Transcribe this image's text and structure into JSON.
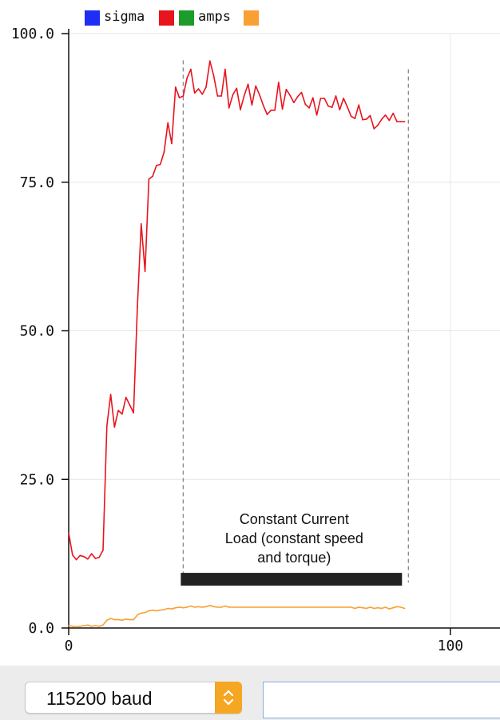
{
  "chart_data": {
    "type": "line",
    "title": "",
    "xlabel": "",
    "ylabel": "",
    "xlim": [
      0,
      113
    ],
    "ylim": [
      0,
      100
    ],
    "xticks": [
      0,
      100
    ],
    "xtick_labels": [
      "0",
      "100"
    ],
    "yticks": [
      0,
      25,
      50,
      75,
      100
    ],
    "ytick_labels": [
      "0.0",
      "25.0",
      "50.0",
      "75.0",
      "100.0"
    ],
    "grid": true,
    "legend": {
      "position": "top-left",
      "entries": [
        {
          "label": "sigma",
          "color": "#1f2ef5",
          "show_label": true
        },
        {
          "label": "",
          "color": "#e8141e",
          "show_label": false
        },
        {
          "label": "",
          "color": "#1d9b2b",
          "show_label": false
        },
        {
          "label": "amps",
          "color": "#f9a034",
          "show_label": true
        },
        {
          "label": "",
          "color": "#f9a034",
          "show_label": false
        }
      ]
    },
    "series": [
      {
        "color": "#e8141e",
        "x": [
          0,
          1,
          2,
          3,
          4,
          5,
          6,
          7,
          8,
          9,
          10,
          11,
          12,
          13,
          14,
          15,
          16,
          17,
          18,
          19,
          20,
          21,
          22,
          23,
          24,
          25,
          26,
          27,
          28,
          29,
          30,
          31,
          32,
          33,
          34,
          35,
          36,
          37,
          38,
          39,
          40,
          41,
          42,
          43,
          44,
          45,
          46,
          47,
          48,
          49,
          50,
          51,
          52,
          53,
          54,
          55,
          56,
          57,
          58,
          59,
          60,
          61,
          62,
          63,
          64,
          65,
          66,
          67,
          68,
          69,
          70,
          71,
          72,
          73,
          74,
          75,
          76,
          77,
          78,
          79,
          80,
          81,
          82,
          83,
          84,
          85,
          86,
          87,
          88
        ],
        "values": [
          16.0,
          12.3,
          11.5,
          12.2,
          12.0,
          11.6,
          12.5,
          11.7,
          11.9,
          13.1,
          34.0,
          39.3,
          33.8,
          36.6,
          36.0,
          38.8,
          37.5,
          36.2,
          54.0,
          68.0,
          60.0,
          75.5,
          76.0,
          77.8,
          78.0,
          80.1,
          85.0,
          81.5,
          91.0,
          89.2,
          89.5,
          92.5,
          94.0,
          90.0,
          90.7,
          89.8,
          91.0,
          95.4,
          92.9,
          89.5,
          89.5,
          94.0,
          87.5,
          89.7,
          90.8,
          87.2,
          89.6,
          91.5,
          88.0,
          91.2,
          89.7,
          87.9,
          86.4,
          87.1,
          87.1,
          91.8,
          87.3,
          90.6,
          89.6,
          88.4,
          89.4,
          90.1,
          88.1,
          87.5,
          89.2,
          86.3,
          89.1,
          89.1,
          87.8,
          87.6,
          89.5,
          87.2,
          89.1,
          87.7,
          86.1,
          85.7,
          88.0,
          85.5,
          85.6,
          86.2,
          84.0,
          84.6,
          85.6,
          86.3,
          85.4,
          86.6,
          85.2,
          85.2,
          85.2
        ]
      },
      {
        "name": "amps",
        "color": "#f9a034",
        "x": [
          0,
          1,
          2,
          3,
          4,
          5,
          6,
          7,
          8,
          9,
          10,
          11,
          12,
          13,
          14,
          15,
          16,
          17,
          18,
          19,
          20,
          21,
          22,
          23,
          24,
          25,
          26,
          27,
          28,
          29,
          30,
          31,
          32,
          33,
          34,
          35,
          36,
          37,
          38,
          39,
          40,
          41,
          42,
          43,
          44,
          45,
          46,
          47,
          48,
          49,
          50,
          51,
          52,
          53,
          54,
          55,
          56,
          57,
          58,
          59,
          60,
          61,
          62,
          63,
          64,
          65,
          66,
          67,
          68,
          69,
          70,
          71,
          72,
          73,
          74,
          75,
          76,
          77,
          78,
          79,
          80,
          81,
          82,
          83,
          84,
          85,
          86,
          87,
          88
        ],
        "values": [
          0.4,
          0.3,
          0.2,
          0.3,
          0.4,
          0.5,
          0.3,
          0.4,
          0.3,
          0.5,
          1.3,
          1.6,
          1.4,
          1.4,
          1.3,
          1.5,
          1.4,
          1.4,
          2.2,
          2.5,
          2.6,
          2.9,
          3.0,
          2.9,
          3.0,
          3.1,
          3.3,
          3.2,
          3.4,
          3.5,
          3.4,
          3.5,
          3.7,
          3.5,
          3.6,
          3.5,
          3.6,
          3.8,
          3.6,
          3.5,
          3.5,
          3.7,
          3.5,
          3.5,
          3.5,
          3.5,
          3.5,
          3.5,
          3.5,
          3.5,
          3.5,
          3.5,
          3.5,
          3.5,
          3.5,
          3.5,
          3.5,
          3.5,
          3.5,
          3.5,
          3.5,
          3.5,
          3.5,
          3.5,
          3.5,
          3.5,
          3.5,
          3.5,
          3.5,
          3.5,
          3.5,
          3.5,
          3.5,
          3.5,
          3.5,
          3.3,
          3.5,
          3.4,
          3.3,
          3.5,
          3.3,
          3.4,
          3.3,
          3.5,
          3.2,
          3.4,
          3.6,
          3.5,
          3.3
        ]
      }
    ],
    "annotation": {
      "text_lines": [
        "Constant Current",
        "Load (constant speed",
        "and torque)"
      ],
      "span_x": [
        30,
        89
      ],
      "bar_y": 8.2,
      "dash_top_y": [
        95.5,
        94.0
      ],
      "bar_color": "#222222",
      "dash_color": "#888888"
    }
  },
  "controls": {
    "baud_label": "115200 baud",
    "stepper_glyph": "⇕",
    "input_value": ""
  }
}
